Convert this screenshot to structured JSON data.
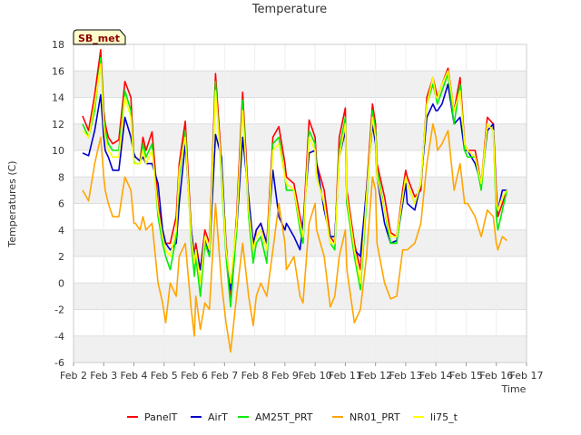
{
  "chart_data": {
    "type": "line",
    "title": "Temperature",
    "xlabel": "Time",
    "ylabel": "Temperatures (C)",
    "site_label": "SB_met",
    "xlim": [
      2,
      17
    ],
    "ylim": [
      -6,
      18
    ],
    "x_ticks": [
      2,
      3,
      4,
      5,
      6,
      7,
      8,
      9,
      10,
      11,
      12,
      13,
      14,
      15,
      16,
      17
    ],
    "x_tick_labels": [
      "Feb 2",
      "Feb 3",
      "Feb 4",
      "Feb 5",
      "Feb 6",
      "Feb 7",
      "Feb 8",
      "Feb 9",
      "Feb 10",
      "Feb 11",
      "Feb 12",
      "Feb 13",
      "Feb 14",
      "Feb 15",
      "Feb 16",
      "Feb 17"
    ],
    "y_ticks": [
      -6,
      -4,
      -2,
      0,
      2,
      4,
      6,
      8,
      10,
      12,
      14,
      16,
      18
    ],
    "y_tick_labels": [
      "-6",
      "-4",
      "-2",
      "0",
      "2",
      "4",
      "6",
      "8",
      "10",
      "12",
      "14",
      "16",
      "18"
    ],
    "grid": true,
    "background_bands": "alternating light gray",
    "legend_position": "bottom",
    "series": [
      {
        "name": "PanelT",
        "color": "#ff0000",
        "x": [
          2.3,
          2.5,
          2.7,
          2.9,
          3.0,
          3.05,
          3.15,
          3.3,
          3.5,
          3.7,
          3.9,
          4.0,
          4.05,
          4.2,
          4.3,
          4.4,
          4.6,
          4.8,
          4.95,
          5.05,
          5.2,
          5.4,
          5.5,
          5.7,
          5.9,
          6.0,
          6.05,
          6.2,
          6.35,
          6.5,
          6.7,
          6.9,
          7.0,
          7.05,
          7.2,
          7.4,
          7.6,
          7.8,
          7.95,
          8.05,
          8.2,
          8.4,
          8.6,
          8.8,
          9.0,
          9.05,
          9.3,
          9.5,
          9.6,
          9.8,
          10.0,
          10.05,
          10.3,
          10.5,
          10.65,
          10.8,
          11.0,
          11.05,
          11.3,
          11.5,
          11.7,
          11.9,
          12.0,
          12.05,
          12.3,
          12.5,
          12.7,
          12.9,
          13.0,
          13.05,
          13.3,
          13.5,
          13.7,
          13.9,
          14.0,
          14.05,
          14.2,
          14.4,
          14.6,
          14.8,
          14.95,
          15.05,
          15.3,
          15.5,
          15.7,
          15.9,
          16.0,
          16.05,
          16.2,
          16.35
        ],
        "y": [
          12.6,
          11.5,
          14.2,
          17.6,
          13.0,
          12.0,
          11.0,
          10.5,
          10.8,
          15.2,
          14.0,
          9.5,
          9.5,
          9.2,
          11.0,
          10.0,
          11.4,
          6.0,
          4.0,
          3.0,
          3.0,
          5.0,
          9.0,
          12.2,
          4.0,
          2.0,
          3.0,
          1.0,
          4.0,
          3.0,
          15.8,
          9.0,
          5.0,
          3.0,
          -1.0,
          5.0,
          14.4,
          6.0,
          2.5,
          4.0,
          4.5,
          3.0,
          11.0,
          11.8,
          9.0,
          8.0,
          7.5,
          5.0,
          4.0,
          12.3,
          11.0,
          9.0,
          7.0,
          3.5,
          3.0,
          11.0,
          13.2,
          7.0,
          3.0,
          1.0,
          7.0,
          13.5,
          12.0,
          9.0,
          6.5,
          3.8,
          3.5,
          7.0,
          8.5,
          8.0,
          6.5,
          7.0,
          14.0,
          15.5,
          14.5,
          14.0,
          15.0,
          16.2,
          13.0,
          15.5,
          10.5,
          10.0,
          10.0,
          7.5,
          12.5,
          12.0,
          7.0,
          5.0,
          6.0,
          7.0
        ]
      },
      {
        "name": "AirT",
        "color": "#0000cc",
        "x": [
          2.3,
          2.5,
          2.7,
          2.9,
          3.0,
          3.05,
          3.15,
          3.3,
          3.5,
          3.7,
          3.9,
          4.0,
          4.05,
          4.2,
          4.3,
          4.4,
          4.6,
          4.8,
          4.95,
          5.05,
          5.2,
          5.4,
          5.5,
          5.7,
          5.9,
          6.0,
          6.05,
          6.2,
          6.35,
          6.5,
          6.7,
          6.9,
          7.0,
          7.05,
          7.2,
          7.4,
          7.6,
          7.8,
          7.95,
          8.05,
          8.2,
          8.4,
          8.6,
          8.8,
          9.0,
          9.05,
          9.3,
          9.5,
          9.6,
          9.8,
          10.0,
          10.05,
          10.3,
          10.5,
          10.65,
          10.8,
          11.0,
          11.05,
          11.3,
          11.5,
          11.7,
          11.9,
          12.0,
          12.05,
          12.3,
          12.5,
          12.7,
          12.9,
          13.0,
          13.05,
          13.3,
          13.5,
          13.7,
          13.9,
          14.0,
          14.05,
          14.2,
          14.4,
          14.6,
          14.8,
          14.95,
          15.05,
          15.3,
          15.5,
          15.7,
          15.9,
          16.0,
          16.05,
          16.2,
          16.35
        ],
        "y": [
          9.8,
          9.6,
          11.5,
          14.2,
          11.0,
          10.0,
          9.5,
          8.5,
          8.5,
          12.5,
          11.0,
          9.8,
          9.5,
          9.2,
          9.5,
          9.0,
          9.0,
          7.5,
          4.0,
          3.0,
          2.5,
          3.0,
          6.0,
          10.5,
          4.0,
          2.0,
          2.5,
          1.0,
          3.5,
          2.0,
          11.2,
          9.5,
          5.0,
          2.5,
          -0.5,
          4.0,
          11.0,
          6.5,
          3.0,
          4.0,
          4.5,
          3.0,
          8.5,
          5.0,
          4.0,
          4.5,
          3.5,
          2.5,
          4.5,
          9.8,
          10.0,
          9.0,
          5.5,
          3.5,
          3.5,
          9.5,
          11.5,
          6.0,
          2.5,
          2.0,
          7.0,
          12.0,
          10.5,
          8.0,
          4.5,
          3.0,
          3.2,
          6.0,
          7.5,
          6.0,
          5.5,
          7.5,
          12.5,
          13.5,
          13.0,
          13.0,
          13.5,
          15.0,
          12.0,
          12.5,
          10.0,
          10.0,
          9.0,
          7.5,
          11.5,
          12.0,
          6.0,
          5.5,
          7.0,
          7.0
        ]
      },
      {
        "name": "AM25T_PRT",
        "color": "#00ee00",
        "x": [
          2.3,
          2.5,
          2.7,
          2.9,
          3.0,
          3.05,
          3.15,
          3.3,
          3.5,
          3.7,
          3.9,
          4.0,
          4.05,
          4.2,
          4.3,
          4.4,
          4.6,
          4.8,
          4.95,
          5.05,
          5.2,
          5.4,
          5.5,
          5.7,
          5.9,
          6.0,
          6.05,
          6.2,
          6.35,
          6.5,
          6.7,
          6.9,
          7.0,
          7.05,
          7.2,
          7.4,
          7.6,
          7.8,
          7.95,
          8.05,
          8.2,
          8.4,
          8.6,
          8.8,
          9.0,
          9.05,
          9.3,
          9.5,
          9.6,
          9.8,
          10.0,
          10.05,
          10.3,
          10.5,
          10.65,
          10.8,
          11.0,
          11.05,
          11.3,
          11.5,
          11.7,
          11.9,
          12.0,
          12.05,
          12.3,
          12.5,
          12.7,
          12.9,
          13.0,
          13.05,
          13.3,
          13.5,
          13.7,
          13.9,
          14.0,
          14.05,
          14.2,
          14.4,
          14.6,
          14.8,
          14.95,
          15.05,
          15.3,
          15.5,
          15.7,
          15.9,
          16.0,
          16.05,
          16.2,
          16.35
        ],
        "y": [
          12.0,
          11.0,
          13.0,
          17.0,
          12.5,
          11.5,
          10.5,
          10.0,
          10.0,
          14.5,
          13.0,
          9.2,
          9.0,
          9.0,
          10.5,
          9.5,
          10.5,
          5.0,
          3.0,
          2.0,
          1.0,
          3.5,
          8.0,
          11.5,
          3.0,
          0.5,
          2.0,
          -1.0,
          3.0,
          2.0,
          15.2,
          8.0,
          4.0,
          2.0,
          -1.8,
          4.0,
          13.8,
          5.0,
          1.5,
          3.0,
          3.5,
          1.5,
          10.5,
          11.0,
          8.0,
          7.0,
          7.0,
          4.0,
          3.0,
          11.5,
          10.5,
          8.0,
          6.0,
          3.0,
          2.5,
          10.0,
          12.5,
          6.0,
          2.0,
          -0.5,
          6.0,
          13.0,
          11.5,
          8.5,
          5.5,
          3.0,
          3.0,
          6.5,
          8.0,
          7.5,
          6.0,
          7.5,
          13.5,
          15.0,
          14.0,
          13.5,
          14.5,
          15.8,
          12.0,
          15.0,
          10.0,
          9.5,
          9.5,
          7.0,
          12.0,
          11.5,
          5.0,
          4.0,
          5.5,
          7.0
        ]
      },
      {
        "name": "NR01_PRT",
        "color": "#ffa500",
        "x": [
          2.3,
          2.5,
          2.7,
          2.9,
          3.0,
          3.05,
          3.15,
          3.3,
          3.5,
          3.7,
          3.9,
          4.0,
          4.05,
          4.2,
          4.3,
          4.4,
          4.6,
          4.8,
          4.95,
          5.05,
          5.2,
          5.4,
          5.5,
          5.7,
          5.9,
          6.0,
          6.05,
          6.2,
          6.35,
          6.5,
          6.7,
          6.9,
          7.0,
          7.05,
          7.2,
          7.4,
          7.6,
          7.8,
          7.95,
          8.05,
          8.2,
          8.4,
          8.6,
          8.8,
          9.0,
          9.05,
          9.3,
          9.5,
          9.6,
          9.8,
          10.0,
          10.05,
          10.3,
          10.5,
          10.65,
          10.8,
          11.0,
          11.05,
          11.3,
          11.5,
          11.7,
          11.9,
          12.0,
          12.05,
          12.3,
          12.5,
          12.7,
          12.9,
          13.0,
          13.05,
          13.3,
          13.5,
          13.7,
          13.9,
          14.0,
          14.05,
          14.2,
          14.4,
          14.6,
          14.8,
          14.95,
          15.05,
          15.3,
          15.5,
          15.7,
          15.9,
          16.0,
          16.05,
          16.2,
          16.35
        ],
        "y": [
          7.0,
          6.2,
          9.0,
          11.0,
          8.0,
          7.0,
          6.0,
          5.0,
          5.0,
          8.0,
          7.0,
          4.5,
          4.5,
          4.0,
          5.0,
          4.0,
          4.5,
          0.0,
          -1.5,
          -3.0,
          0.0,
          -1.0,
          2.0,
          3.0,
          -2.0,
          -4.0,
          -1.0,
          -3.5,
          -1.5,
          -2.0,
          6.0,
          0.0,
          -2.0,
          -3.0,
          -5.2,
          -1.0,
          3.0,
          -1.0,
          -3.2,
          -1.0,
          0.0,
          -1.0,
          2.5,
          6.0,
          3.0,
          1.0,
          2.0,
          -1.0,
          -1.5,
          4.5,
          6.0,
          4.0,
          2.0,
          -1.8,
          -1.0,
          2.0,
          4.0,
          1.0,
          -3.0,
          -2.0,
          2.0,
          8.0,
          7.0,
          3.0,
          0.0,
          -1.2,
          -1.0,
          2.5,
          2.5,
          2.5,
          3.0,
          4.5,
          9.0,
          12.0,
          11.0,
          10.0,
          10.5,
          11.5,
          7.0,
          9.0,
          6.0,
          6.0,
          5.0,
          3.5,
          5.5,
          5.0,
          3.0,
          2.5,
          3.5,
          3.2
        ]
      },
      {
        "name": "li75_t",
        "color": "#ffff00",
        "x": [
          2.3,
          2.5,
          2.7,
          2.9,
          3.0,
          3.05,
          3.15,
          3.3,
          3.5,
          3.7,
          3.9,
          4.0,
          4.05,
          4.2,
          4.3,
          4.4,
          4.6,
          4.8,
          4.95,
          5.05,
          5.2,
          5.4,
          5.5,
          5.7,
          5.9,
          6.0,
          6.05,
          6.2,
          6.35,
          6.5,
          6.7,
          6.9,
          7.0,
          7.05,
          7.2,
          7.4,
          7.6,
          7.8,
          7.95,
          8.05,
          8.2,
          8.4,
          8.6,
          8.8,
          9.0,
          9.05,
          9.3,
          9.5,
          9.6,
          9.8,
          10.0,
          10.05,
          10.3,
          10.5,
          10.65,
          10.8,
          11.0,
          11.05,
          11.3,
          11.5,
          11.7,
          11.9,
          12.0,
          12.05,
          12.3,
          12.5,
          12.7,
          12.9,
          13.0,
          13.05,
          13.3,
          13.5,
          13.7,
          13.9,
          14.0,
          14.05,
          14.2,
          14.4,
          14.6,
          14.8,
          14.95,
          15.05,
          15.3,
          15.5,
          15.7,
          15.9,
          16.0,
          16.05,
          16.2,
          16.35
        ],
        "y": [
          11.5,
          11.0,
          13.5,
          16.5,
          12.0,
          11.0,
          10.0,
          9.5,
          9.5,
          14.0,
          12.5,
          9.0,
          9.0,
          9.0,
          10.0,
          9.0,
          10.0,
          5.5,
          3.5,
          2.5,
          2.0,
          4.0,
          8.5,
          11.0,
          3.5,
          1.5,
          2.5,
          0.0,
          3.5,
          2.5,
          14.5,
          8.5,
          4.5,
          2.5,
          0.0,
          4.5,
          13.0,
          5.5,
          2.5,
          3.5,
          4.0,
          2.5,
          10.0,
          10.5,
          8.0,
          7.5,
          7.0,
          4.5,
          3.5,
          11.0,
          10.0,
          8.0,
          6.0,
          3.0,
          3.0,
          9.5,
          12.0,
          6.5,
          2.5,
          0.0,
          6.5,
          12.5,
          11.0,
          8.0,
          5.5,
          3.5,
          3.5,
          6.5,
          8.0,
          7.5,
          6.0,
          7.5,
          13.5,
          15.5,
          14.0,
          14.0,
          15.0,
          16.0,
          13.0,
          14.5,
          10.5,
          10.0,
          9.5,
          7.5,
          12.0,
          11.5,
          6.0,
          5.5,
          6.5,
          7.0
        ]
      }
    ]
  }
}
